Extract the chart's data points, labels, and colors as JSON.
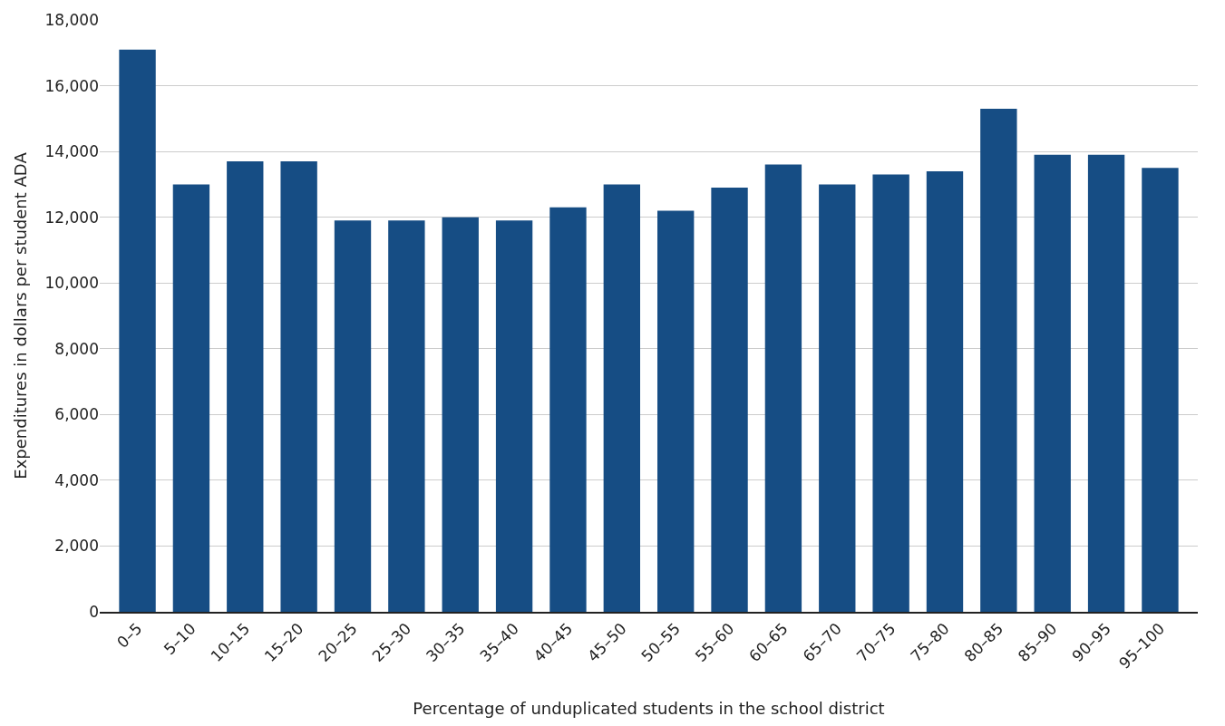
{
  "chart_data": {
    "type": "bar",
    "xlabel": "Percentage of unduplicated students in the school district",
    "ylabel": "Expenditures in dollars per student ADA",
    "categories": [
      "0–5",
      "5–10",
      "10–15",
      "15–20",
      "20–25",
      "25–30",
      "30–35",
      "35–40",
      "40–45",
      "45–50",
      "50–55",
      "55–60",
      "60–65",
      "65–70",
      "70–75",
      "75–80",
      "80–85",
      "85–90",
      "90–95",
      "95–100"
    ],
    "values": [
      17100,
      13000,
      13700,
      13700,
      11900,
      11900,
      12000,
      11900,
      12300,
      13000,
      12200,
      12900,
      13600,
      13000,
      13300,
      13400,
      15300,
      13900,
      13900,
      13500
    ],
    "color": "#164d84",
    "ylim": [
      0,
      18000
    ],
    "yticks": [
      {
        "value": 0,
        "label": "0"
      },
      {
        "value": 2000,
        "label": "2,000"
      },
      {
        "value": 4000,
        "label": "4,000"
      },
      {
        "value": 6000,
        "label": "6,000"
      },
      {
        "value": 8000,
        "label": "8,000"
      },
      {
        "value": 10000,
        "label": "10,000"
      },
      {
        "value": 12000,
        "label": "12,000"
      },
      {
        "value": 14000,
        "label": "14,000"
      },
      {
        "value": 16000,
        "label": "16,000"
      },
      {
        "value": 18000,
        "label": "18,000"
      }
    ],
    "grid": "y"
  }
}
